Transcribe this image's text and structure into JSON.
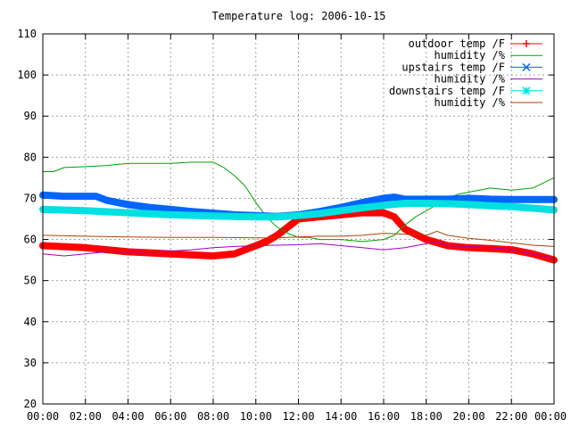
{
  "chart_data": {
    "type": "line",
    "title": "Temperature log: 2006-10-15",
    "xlabel": "",
    "ylabel": "",
    "xlim": [
      0,
      24
    ],
    "ylim": [
      20,
      110
    ],
    "x_ticks": [
      "00:00",
      "02:00",
      "04:00",
      "06:00",
      "08:00",
      "10:00",
      "12:00",
      "14:00",
      "16:00",
      "18:00",
      "20:00",
      "22:00",
      "00:00"
    ],
    "y_ticks": [
      "20",
      "30",
      "40",
      "50",
      "60",
      "70",
      "80",
      "90",
      "100",
      "110"
    ],
    "grid": true,
    "legend_position": "top-right",
    "series": [
      {
        "name": "outdoor temp /F",
        "color": "#ff0000",
        "marker": "plus",
        "width": 8,
        "x": [
          0,
          2,
          4,
          6,
          8,
          9,
          10,
          10.5,
          11,
          11.5,
          12,
          13,
          14,
          15,
          16,
          16.5,
          17,
          18,
          19,
          20,
          21,
          22,
          23,
          24
        ],
        "y": [
          58.5,
          58,
          57,
          56.5,
          56,
          56.5,
          58.5,
          59.5,
          61,
          63,
          65,
          65.5,
          66,
          66.5,
          66.5,
          65.5,
          62.5,
          60,
          58.5,
          58,
          57.8,
          57.5,
          56.5,
          55
        ]
      },
      {
        "name": "humidity /%",
        "color": "#00a000",
        "marker": "none",
        "width": 1,
        "x": [
          0,
          0.5,
          1,
          2,
          3,
          4,
          5,
          6,
          7,
          8,
          8.5,
          9,
          9.5,
          10,
          10.5,
          11,
          11.5,
          12,
          12.5,
          13,
          14,
          15,
          16,
          16.5,
          17,
          17.5,
          18,
          18.5,
          19,
          19.5,
          20,
          21,
          22,
          23,
          24
        ],
        "y": [
          76.5,
          76.5,
          77.5,
          77.7,
          78,
          78.5,
          78.5,
          78.5,
          78.8,
          78.8,
          77.5,
          75.5,
          73,
          69,
          65.5,
          63,
          61.5,
          60.5,
          60.5,
          60,
          60,
          59.5,
          60,
          61,
          63.5,
          65.5,
          67,
          68.5,
          70,
          71,
          71.5,
          72.5,
          72,
          72.5,
          75
        ]
      },
      {
        "name": "upstairs temp /F",
        "color": "#0066ff",
        "marker": "cross",
        "width": 8,
        "x": [
          0,
          1,
          2,
          2.5,
          3,
          4,
          5,
          6,
          7,
          8,
          9,
          10,
          11,
          12,
          13,
          14,
          15,
          16,
          16.5,
          17,
          18,
          19,
          20,
          21,
          22,
          23,
          24
        ],
        "y": [
          70.8,
          70.5,
          70.5,
          70.5,
          69.5,
          68.5,
          67.8,
          67.3,
          66.8,
          66.4,
          66,
          65.8,
          65.6,
          66,
          66.8,
          67.8,
          69,
          70,
          70.3,
          69.8,
          69.8,
          69.8,
          70,
          69.8,
          69.7,
          69.7,
          69.7
        ]
      },
      {
        "name": "humidity /%",
        "color": "#a000c0",
        "marker": "none",
        "width": 1,
        "x": [
          0,
          1,
          2,
          3,
          4,
          5,
          6,
          7,
          8,
          9,
          10,
          11,
          12,
          13,
          14,
          15,
          16,
          17,
          17.5,
          18,
          18.5,
          19,
          20,
          21,
          22,
          23,
          24
        ],
        "y": [
          56.5,
          56,
          56.5,
          57,
          57,
          57,
          57.2,
          57.5,
          58,
          58.3,
          58.5,
          58.6,
          58.7,
          59,
          58.5,
          58,
          57.5,
          58,
          58.5,
          59,
          59.5,
          58.5,
          58.3,
          58,
          57.5,
          56.5,
          55.3
        ]
      },
      {
        "name": "downstairs temp /F",
        "color": "#00e0e0",
        "marker": "star",
        "width": 8,
        "x": [
          0,
          2,
          4,
          6,
          8,
          10,
          11,
          12,
          13,
          14,
          15,
          16,
          17,
          18,
          19,
          20,
          21,
          22,
          23,
          24
        ],
        "y": [
          67.3,
          67,
          66.5,
          66,
          65.7,
          65.5,
          65.5,
          65.8,
          66.3,
          67,
          67.7,
          68.3,
          68.8,
          68.8,
          68.7,
          68.5,
          68.2,
          68,
          67.6,
          67.2
        ]
      },
      {
        "name": "humidity /%",
        "color": "#b04000",
        "marker": "none",
        "width": 1,
        "x": [
          0,
          2,
          4,
          6,
          8,
          10,
          11,
          12,
          13,
          14,
          15,
          16,
          17,
          18,
          18.5,
          19,
          20,
          21,
          22,
          23,
          24
        ],
        "y": [
          61,
          60.8,
          60.6,
          60.5,
          60.5,
          60.4,
          60.4,
          60.6,
          60.8,
          60.8,
          61,
          61.5,
          61.3,
          61,
          62,
          61,
          60.3,
          59.8,
          59.2,
          58.6,
          58.3
        ]
      }
    ]
  }
}
